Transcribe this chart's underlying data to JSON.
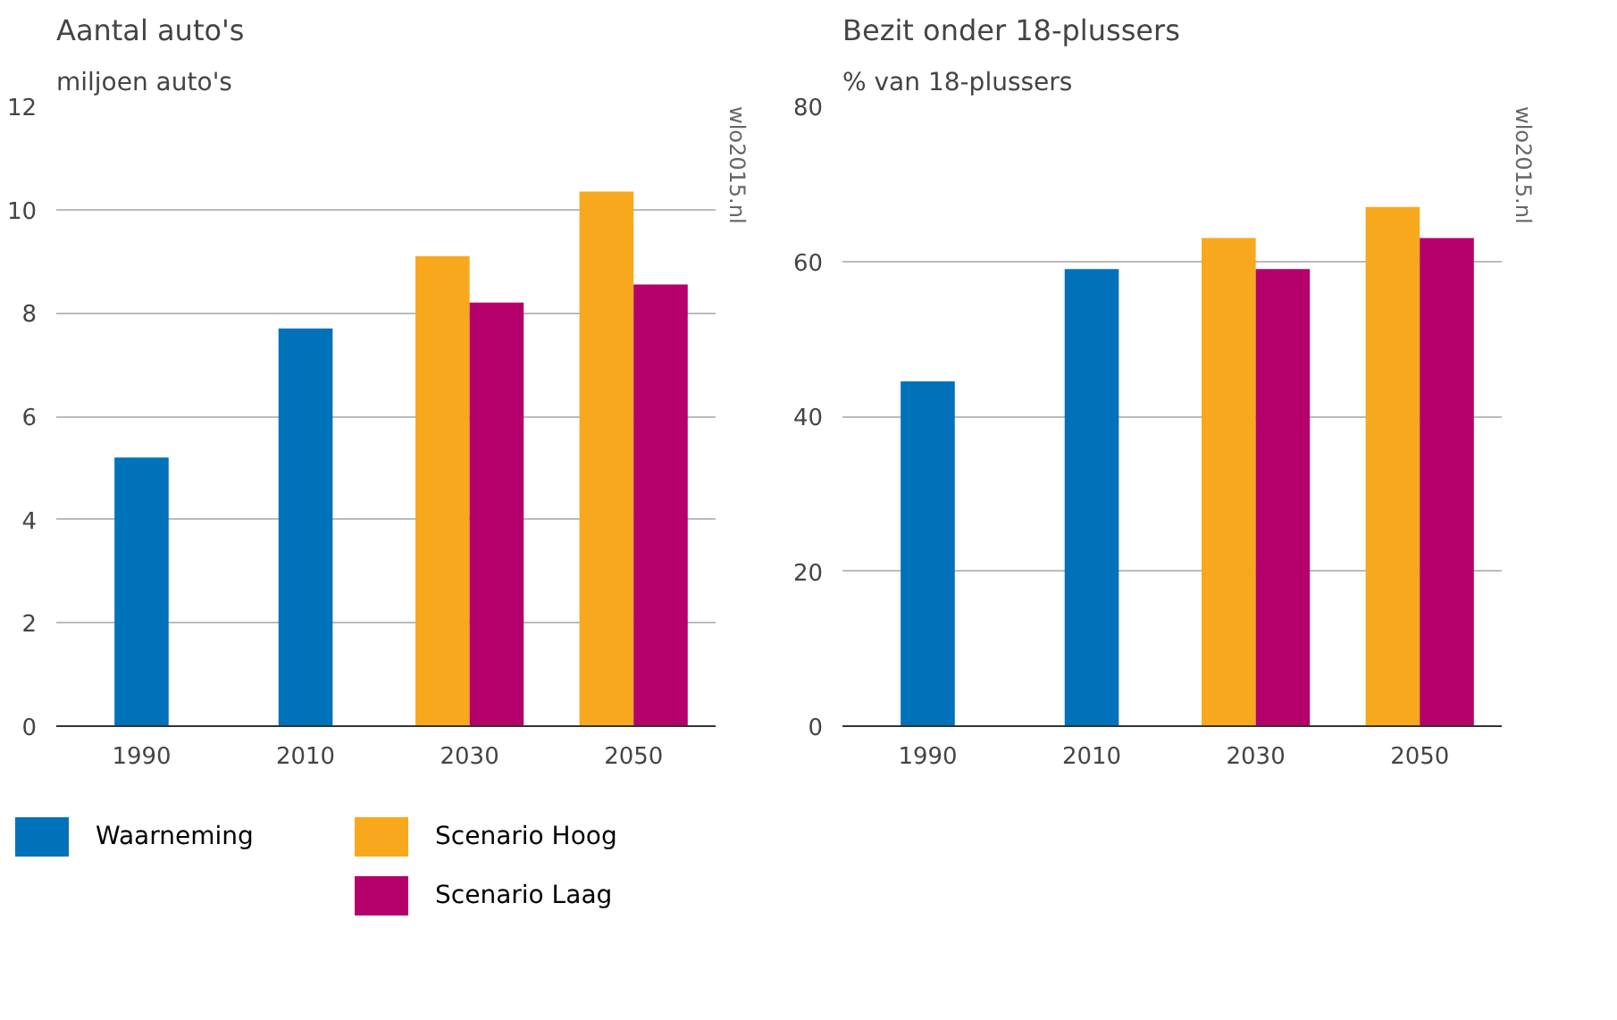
{
  "chart_data": [
    {
      "type": "bar",
      "title": "Aantal auto's",
      "ylabel": "miljoen auto's",
      "categories": [
        "1990",
        "2010",
        "2030",
        "2050"
      ],
      "series": [
        {
          "name": "Waarneming",
          "color": "#0072b9",
          "values": [
            5.2,
            7.7,
            null,
            null
          ]
        },
        {
          "name": "Scenario Hoog",
          "color": "#f8a81d",
          "values": [
            null,
            null,
            9.1,
            10.35
          ]
        },
        {
          "name": "Scenario Laag",
          "color": "#b5006b",
          "values": [
            null,
            null,
            8.2,
            8.55
          ]
        }
      ],
      "ylim": [
        0,
        12
      ],
      "yticks": [
        0,
        2,
        4,
        6,
        8,
        10,
        12
      ],
      "grid": "y",
      "legend": "bottom",
      "annotations": [
        "wlo2015.nl"
      ]
    },
    {
      "type": "bar",
      "title": "Bezit onder 18-plussers",
      "ylabel": "% van 18-plussers",
      "categories": [
        "1990",
        "2010",
        "2030",
        "2050"
      ],
      "series": [
        {
          "color": "#0072b9",
          "values": [
            44.5,
            59,
            null,
            null
          ]
        },
        {
          "color": "#f8a81d",
          "values": [
            null,
            null,
            63,
            67
          ]
        },
        {
          "color": "#b5006b",
          "values": [
            null,
            null,
            59,
            63
          ]
        }
      ],
      "ylim": [
        0,
        80
      ],
      "yticks": [
        0,
        20,
        40,
        60,
        80
      ],
      "grid": "y",
      "annotations": [
        "wlo2015.nl"
      ]
    }
  ]
}
